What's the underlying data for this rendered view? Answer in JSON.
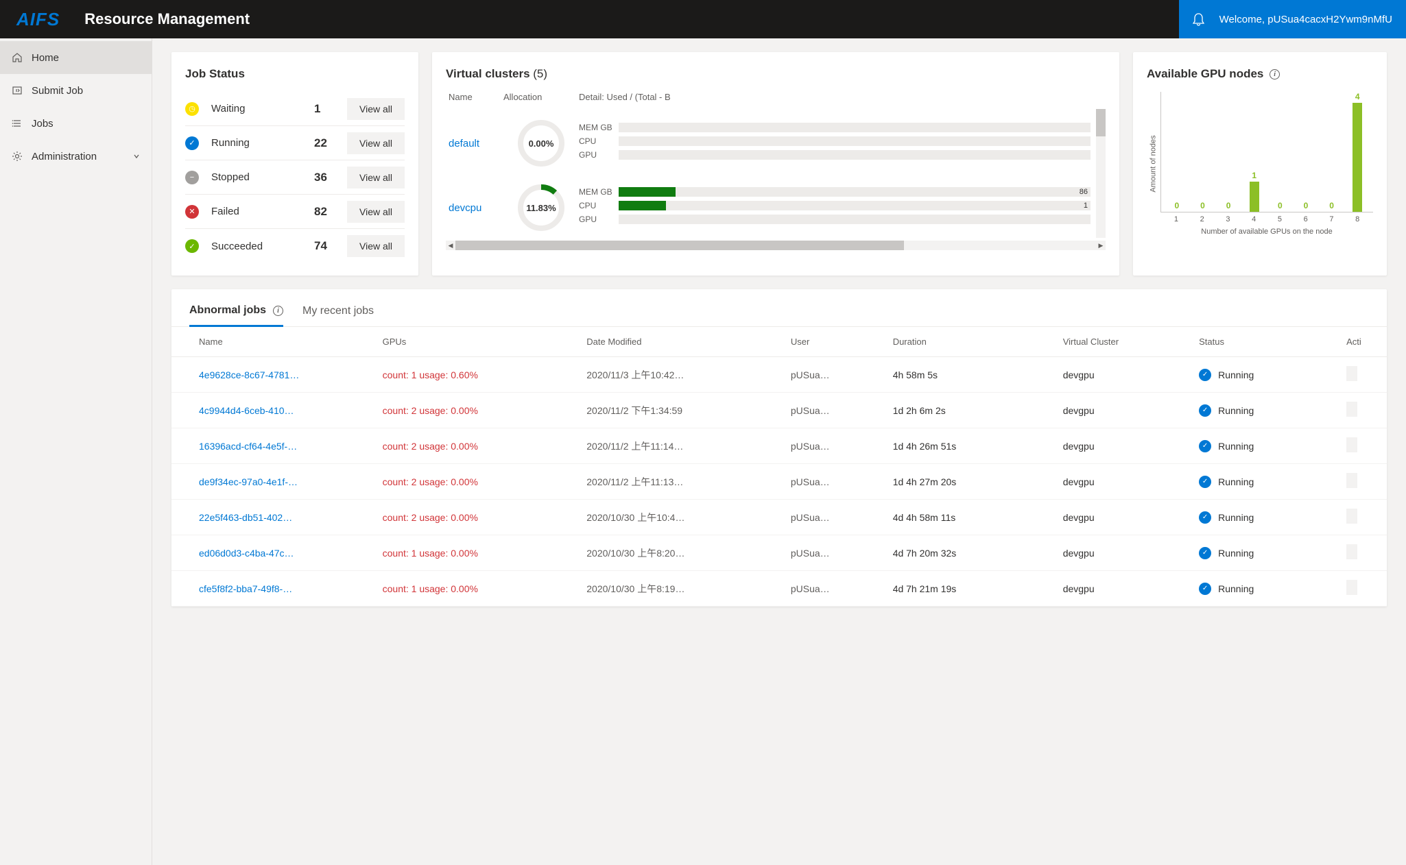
{
  "brand": "AIFS",
  "page_title": "Resource Management",
  "welcome_prefix": "Welcome, ",
  "username": "pUSua4cacxH2Ywm9nMfU",
  "sidebar": {
    "items": [
      {
        "label": "Home",
        "active": true,
        "icon": "home"
      },
      {
        "label": "Submit Job",
        "active": false,
        "icon": "submit"
      },
      {
        "label": "Jobs",
        "active": false,
        "icon": "list"
      },
      {
        "label": "Administration",
        "active": false,
        "icon": "gear",
        "expandable": true
      }
    ]
  },
  "job_status": {
    "title": "Job Status",
    "view_all_label": "View all",
    "rows": [
      {
        "label": "Waiting",
        "count": "1",
        "color": "#fce100",
        "icon": "clock"
      },
      {
        "label": "Running",
        "count": "22",
        "color": "#0078d4",
        "icon": "check"
      },
      {
        "label": "Stopped",
        "count": "36",
        "color": "#a19f9d",
        "icon": "minus"
      },
      {
        "label": "Failed",
        "count": "82",
        "color": "#d13438",
        "icon": "x"
      },
      {
        "label": "Succeeded",
        "count": "74",
        "color": "#6bb700",
        "icon": "check"
      }
    ]
  },
  "virtual_clusters": {
    "title_prefix": "Virtual clusters",
    "count": "(5)",
    "headers": {
      "name": "Name",
      "allocation": "Allocation",
      "detail": "Detail: Used / (Total - B"
    },
    "detail_labels": {
      "mem": "MEM GB",
      "cpu": "CPU",
      "gpu": "GPU"
    },
    "rows": [
      {
        "name": "default",
        "pct": "0.00%",
        "pct_val": 0,
        "mem": {
          "used": 0,
          "val": ""
        },
        "cpu": {
          "used": 0,
          "val": ""
        },
        "gpu": {
          "used": 0,
          "val": ""
        }
      },
      {
        "name": "devcpu",
        "pct": "11.83%",
        "pct_val": 11.83,
        "mem": {
          "used": 12,
          "val": "86"
        },
        "cpu": {
          "used": 10,
          "val": "1"
        },
        "gpu": {
          "used": 0,
          "val": ""
        }
      }
    ]
  },
  "gpu_nodes": {
    "title": "Available GPU nodes",
    "ylabel": "Amount of nodes",
    "xlabel": "Number of available GPUs on the node",
    "categories": [
      "1",
      "2",
      "3",
      "4",
      "5",
      "6",
      "7",
      "8"
    ],
    "values": [
      0,
      0,
      0,
      1,
      0,
      0,
      0,
      4
    ],
    "bar_color": "#8cbf26",
    "value_color": "#8cbf26",
    "max": 4
  },
  "jobs_tabs": {
    "abnormal": "Abnormal jobs",
    "recent": "My recent jobs"
  },
  "jobs_columns": {
    "name": "Name",
    "gpus": "GPUs",
    "date": "Date Modified",
    "user": "User",
    "duration": "Duration",
    "vc": "Virtual Cluster",
    "status": "Status",
    "action": "Acti"
  },
  "jobs_rows": [
    {
      "name": "4e9628ce-8c67-4781…",
      "gpus": "count: 1 usage: 0.60%",
      "date": "2020/11/3 上午10:42…",
      "user": "pUSua…",
      "duration": "4h 58m 5s",
      "vc": "devgpu",
      "status": "Running"
    },
    {
      "name": "4c9944d4-6ceb-410…",
      "gpus": "count: 2 usage: 0.00%",
      "date": "2020/11/2 下午1:34:59",
      "user": "pUSua…",
      "duration": "1d 2h 6m 2s",
      "vc": "devgpu",
      "status": "Running"
    },
    {
      "name": "16396acd-cf64-4e5f-…",
      "gpus": "count: 2 usage: 0.00%",
      "date": "2020/11/2 上午11:14…",
      "user": "pUSua…",
      "duration": "1d 4h 26m 51s",
      "vc": "devgpu",
      "status": "Running"
    },
    {
      "name": "de9f34ec-97a0-4e1f-…",
      "gpus": "count: 2 usage: 0.00%",
      "date": "2020/11/2 上午11:13…",
      "user": "pUSua…",
      "duration": "1d 4h 27m 20s",
      "vc": "devgpu",
      "status": "Running"
    },
    {
      "name": "22e5f463-db51-402…",
      "gpus": "count: 2 usage: 0.00%",
      "date": "2020/10/30 上午10:4…",
      "user": "pUSua…",
      "duration": "4d 4h 58m 11s",
      "vc": "devgpu",
      "status": "Running"
    },
    {
      "name": "ed06d0d3-c4ba-47c…",
      "gpus": "count: 1 usage: 0.00%",
      "date": "2020/10/30 上午8:20…",
      "user": "pUSua…",
      "duration": "4d 7h 20m 32s",
      "vc": "devgpu",
      "status": "Running"
    },
    {
      "name": "cfe5f8f2-bba7-49f8-…",
      "gpus": "count: 1 usage: 0.00%",
      "date": "2020/10/30 上午8:19…",
      "user": "pUSua…",
      "duration": "4d 7h 21m 19s",
      "vc": "devgpu",
      "status": "Running"
    }
  ],
  "colors": {
    "accent": "#0078d4",
    "danger": "#d13438",
    "success": "#107c10"
  }
}
